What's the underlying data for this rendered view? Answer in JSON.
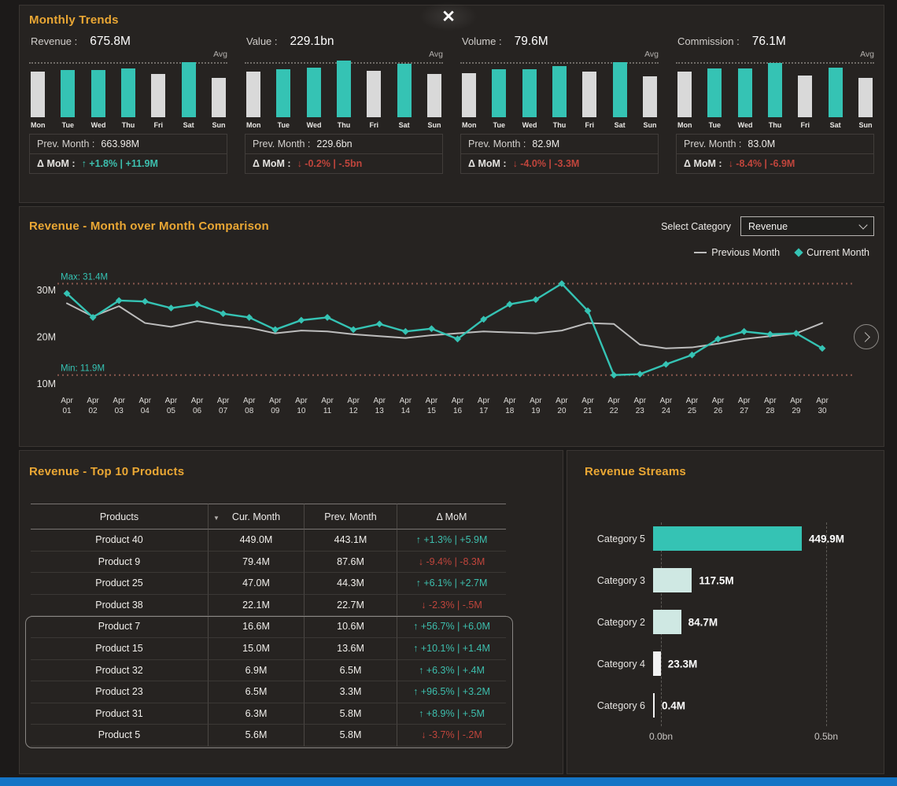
{
  "icons": {
    "close": "✕",
    "sort_desc": "▼"
  },
  "colors": {
    "accent": "#35c3b4",
    "positive": "#3dbfae",
    "negative": "#c0453c",
    "gold": "#eaa734",
    "prev_line": "#bdbdbd",
    "minmax_line": "#8a584e",
    "gray_bar": "#d9d9d9",
    "pale_bar": "#cfe8e3",
    "white_bar": "#f2f2f2",
    "blue_bar": "#1574c5"
  },
  "monthly_trends": {
    "title": "Monthly Trends",
    "avg_label": "Avg",
    "days": [
      "Mon",
      "Tue",
      "Wed",
      "Thu",
      "Fri",
      "Sat",
      "Sun"
    ],
    "cards": [
      {
        "label": "Revenue :",
        "value": "675.8M",
        "prev_label": "Prev. Month :",
        "prev_value": "663.98M",
        "mom_label": "Δ MoM :",
        "mom_value": "↑ +1.8% | +11.9M",
        "trend": "up",
        "bars": [
          80,
          84,
          84,
          86,
          76,
          97,
          70
        ],
        "bar_colors": [
          "gray",
          "teal",
          "teal",
          "teal",
          "gray",
          "teal",
          "gray"
        ]
      },
      {
        "label": "Value :",
        "value": "229.1bn",
        "prev_label": "Prev. Month :",
        "prev_value": "229.6bn",
        "mom_label": "Δ MoM :",
        "mom_value": "↓ -0.2% | -.5bn",
        "trend": "down",
        "bars": [
          80,
          85,
          88,
          100,
          82,
          94,
          76
        ],
        "bar_colors": [
          "gray",
          "teal",
          "teal",
          "teal",
          "gray",
          "teal",
          "gray"
        ]
      },
      {
        "label": "Volume :",
        "value": "79.6M",
        "prev_label": "Prev. Month :",
        "prev_value": "82.9M",
        "mom_label": "Δ MoM :",
        "mom_value": "↓ -4.0% | -3.3M",
        "trend": "down",
        "bars": [
          78,
          85,
          85,
          90,
          80,
          97,
          72
        ],
        "bar_colors": [
          "gray",
          "teal",
          "teal",
          "teal",
          "gray",
          "teal",
          "gray"
        ]
      },
      {
        "label": "Commission :",
        "value": "76.1M",
        "prev_label": "Prev. Month :",
        "prev_value": "83.0M",
        "mom_label": "Δ MoM :",
        "mom_value": "↓ -8.4% | -6.9M",
        "trend": "down",
        "bars": [
          80,
          86,
          86,
          96,
          74,
          88,
          70
        ],
        "bar_colors": [
          "gray",
          "teal",
          "teal",
          "teal",
          "gray",
          "teal",
          "gray"
        ]
      }
    ]
  },
  "comparison": {
    "title": "Revenue - Month over Month Comparison",
    "select_label": "Select Category",
    "selected_category": "Revenue",
    "legend": [
      {
        "label": "Previous Month",
        "marker": "line"
      },
      {
        "label": "Current Month",
        "marker": "diamond"
      }
    ]
  },
  "top_products": {
    "title": "Revenue - Top 10 Products",
    "columns": [
      "Products",
      "Cur. Month",
      "Prev. Month",
      "Δ MoM"
    ],
    "rows": [
      {
        "product": "Product 40",
        "cur": "449.0M",
        "prev": "443.1M",
        "mom": "↑ +1.3% | +5.9M",
        "trend": "up"
      },
      {
        "product": "Product 9",
        "cur": "79.4M",
        "prev": "87.6M",
        "mom": "↓ -9.4% | -8.3M",
        "trend": "down"
      },
      {
        "product": "Product 25",
        "cur": "47.0M",
        "prev": "44.3M",
        "mom": "↑ +6.1% | +2.7M",
        "trend": "up"
      },
      {
        "product": "Product 38",
        "cur": "22.1M",
        "prev": "22.7M",
        "mom": "↓ -2.3% | -.5M",
        "trend": "down"
      },
      {
        "product": "Product 7",
        "cur": "16.6M",
        "prev": "10.6M",
        "mom": "↑ +56.7% | +6.0M",
        "trend": "up"
      },
      {
        "product": "Product 15",
        "cur": "15.0M",
        "prev": "13.6M",
        "mom": "↑ +10.1% | +1.4M",
        "trend": "up"
      },
      {
        "product": "Product 32",
        "cur": "6.9M",
        "prev": "6.5M",
        "mom": "↑ +6.3% | +.4M",
        "trend": "up"
      },
      {
        "product": "Product 23",
        "cur": "6.5M",
        "prev": "3.3M",
        "mom": "↑ +96.5% | +3.2M",
        "trend": "up"
      },
      {
        "product": "Product 31",
        "cur": "6.3M",
        "prev": "5.8M",
        "mom": "↑ +8.9% | +.5M",
        "trend": "up"
      },
      {
        "product": "Product 5",
        "cur": "5.6M",
        "prev": "5.8M",
        "mom": "↓ -3.7% | -.2M",
        "trend": "down"
      }
    ]
  },
  "streams": {
    "title": "Revenue Streams"
  },
  "chart_data": [
    {
      "type": "line",
      "title": "Revenue - Month over Month Comparison",
      "x": [
        "Apr 01",
        "Apr 02",
        "Apr 03",
        "Apr 04",
        "Apr 05",
        "Apr 06",
        "Apr 07",
        "Apr 08",
        "Apr 09",
        "Apr 10",
        "Apr 11",
        "Apr 12",
        "Apr 13",
        "Apr 14",
        "Apr 15",
        "Apr 16",
        "Apr 17",
        "Apr 18",
        "Apr 19",
        "Apr 20",
        "Apr 21",
        "Apr 22",
        "Apr 23",
        "Apr 24",
        "Apr 25",
        "Apr 26",
        "Apr 27",
        "Apr 28",
        "Apr 29",
        "Apr 30"
      ],
      "series": [
        {
          "name": "Previous Month",
          "color": "#bdbdbd",
          "values": [
            27.2,
            24.4,
            26.6,
            23.0,
            22.2,
            23.4,
            22.6,
            22.0,
            20.8,
            21.4,
            21.2,
            20.6,
            20.2,
            19.8,
            20.4,
            20.8,
            21.2,
            21.0,
            20.8,
            21.4,
            23.0,
            22.8,
            18.4,
            17.6,
            17.8,
            18.6,
            19.6,
            20.2,
            20.8,
            23.0
          ]
        },
        {
          "name": "Current Month",
          "color": "#35c3b4",
          "values": [
            29.3,
            24.2,
            27.8,
            27.6,
            26.2,
            27.0,
            25.0,
            24.2,
            21.6,
            23.6,
            24.2,
            21.6,
            22.8,
            21.2,
            21.8,
            19.6,
            23.8,
            27.0,
            28.0,
            31.4,
            25.6,
            11.9,
            12.1,
            14.2,
            16.2,
            19.6,
            21.2,
            20.6,
            20.8,
            17.6
          ]
        }
      ],
      "ylim": [
        9,
        33.5
      ],
      "yticks": [
        {
          "v": 30,
          "label": "30M"
        },
        {
          "v": 20,
          "label": "20M"
        },
        {
          "v": 10,
          "label": "10M"
        }
      ],
      "max": {
        "value": 31.4,
        "label": "Max: 31.4M"
      },
      "min": {
        "value": 11.9,
        "label": "Min: 11.9M"
      },
      "legend_position": "top-right",
      "grid": false
    },
    {
      "type": "bar",
      "orientation": "horizontal",
      "title": "Revenue Streams",
      "categories": [
        "Category 5",
        "Category 3",
        "Category 2",
        "Category 4",
        "Category 6"
      ],
      "values": [
        449.9,
        117.5,
        84.7,
        23.3,
        0.4
      ],
      "value_labels": [
        "449.9M",
        "117.5M",
        "84.7M",
        "23.3M",
        "0.4M"
      ],
      "bar_colors": [
        "teal",
        "pale",
        "pale",
        "white",
        "white"
      ],
      "xlim_m": [
        0,
        500
      ],
      "xticks": [
        "0.0bn",
        "0.5bn"
      ],
      "grid": "dashed-vertical"
    }
  ]
}
